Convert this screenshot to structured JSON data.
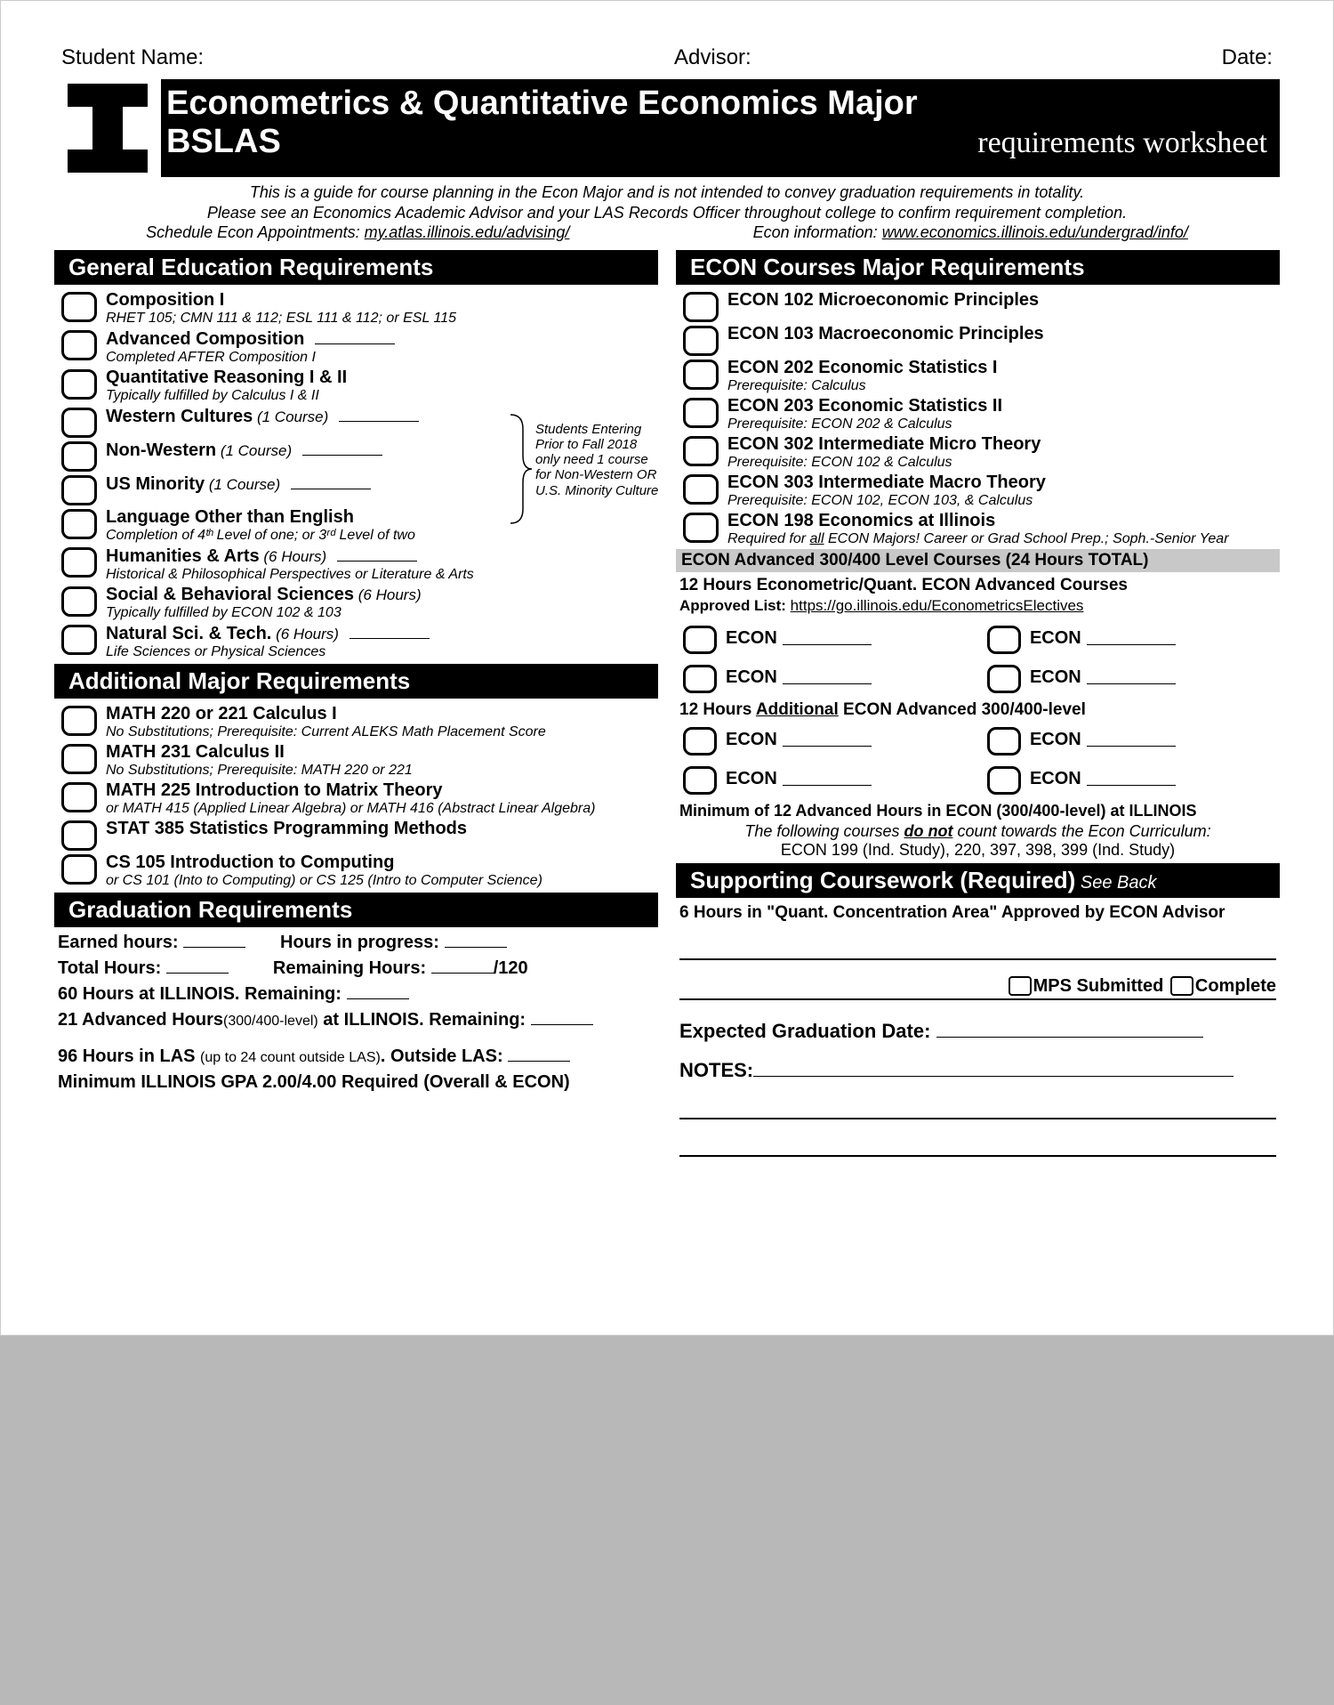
{
  "top": {
    "student": "Student Name:",
    "advisor": "Advisor:",
    "date": "Date:"
  },
  "banner": {
    "title": "Econometrics & Quantitative Economics Major",
    "deg": "BSLAS",
    "tag": "requirements worksheet"
  },
  "intro": {
    "l1": "This is a guide for course planning in the Econ Major and is not intended to convey graduation requirements in totality.",
    "l2": "Please see an Economics Academic Advisor and your LAS Records Officer throughout college to confirm requirement completion.",
    "left": "Schedule Econ Appointments: ",
    "left_link": "my.atlas.illinois.edu/advising/",
    "right": "Econ information: ",
    "right_link": "www.economics.illinois.edu/undergrad/info/"
  },
  "sec": {
    "gened": "General Education Requirements",
    "addl": "Additional Major Requirements",
    "grad": "Graduation Requirements",
    "econ": "ECON Courses Major Requirements",
    "support": "Supporting Coursework (Required)",
    "seeback": " See Back"
  },
  "gened": [
    {
      "t": "Composition I",
      "s": "RHET 105;  CMN 111 & 112;  ESL 111 & 112; or  ESL 115"
    },
    {
      "t": "Advanced Composition",
      "s": "Completed AFTER Composition I",
      "line": true
    },
    {
      "t": "Quantitative Reasoning I & II",
      "s": "Typically fulfilled by Calculus I & II"
    },
    {
      "t": "Western Cultures",
      "tlight": "(1 Course)",
      "line": true
    },
    {
      "t": "Non-Western",
      "tlight": "(1 Course)",
      "line": true
    },
    {
      "t": "US Minority",
      "tlight": "(1 Course)",
      "line": true
    },
    {
      "t": "Language Other than English",
      "s": "Completion of 4ᵗʰ Level of one; or 3ʳᵈ Level of two"
    },
    {
      "t": "Humanities & Arts",
      "tlight": "(6 Hours)",
      "s": "Historical & Philosophical Perspectives or Literature & Arts",
      "line": true
    },
    {
      "t": "Social & Behavioral Sciences",
      "tlight": "(6 Hours)",
      "s": "Typically fulfilled by ECON 102 & 103"
    },
    {
      "t": "Natural Sci. & Tech.",
      "tlight": "(6 Hours)",
      "s": "Life Sciences or Physical Sciences",
      "line": true
    }
  ],
  "bracket_note": "Students Entering Prior to Fall 2018 only need 1 course for Non-Western OR U.S. Minority Culture",
  "addl": [
    {
      "t": "MATH 220 or 221 Calculus I",
      "s": "No Substitutions; Prerequisite: Current ALEKS Math Placement Score"
    },
    {
      "t": "MATH 231 Calculus II",
      "s": "No Substitutions; Prerequisite: MATH 220 or 221"
    },
    {
      "t": "MATH 225 Introduction to Matrix Theory",
      "s": "or MATH 415 (Applied Linear Algebra) or MATH 416 (Abstract Linear Algebra)"
    },
    {
      "t": "STAT 385 Statistics Programming Methods"
    },
    {
      "t": "CS 105 Introduction to Computing",
      "s": "or CS 101 (Into to Computing) or CS 125 (Intro to Computer Science)"
    }
  ],
  "grad": {
    "r1a": "Earned hours:",
    "r1b": "Hours in progress:",
    "r2a": "Total Hours:",
    "r2b": "Remaining Hours:",
    "r2c": "/120",
    "r3": "60 Hours at ILLINOIS. Remaining:",
    "r4a": "21 Advanced Hours",
    "r4b": "(300/400-level)",
    "r4c": " at ILLINOIS. Remaining:",
    "r5a": "96 Hours in LAS",
    "r5b": "(up to 24 count outside LAS)",
    "r5c": ". Outside LAS:",
    "r6": "Minimum ILLINOIS GPA 2.00/4.00 Required (Overall & ECON)"
  },
  "econ": [
    {
      "t": "ECON 102 Microeconomic Principles"
    },
    {
      "t": "ECON 103 Macroeconomic Principles"
    },
    {
      "t": "ECON 202 Economic Statistics I",
      "s": "Prerequisite: Calculus"
    },
    {
      "t": "ECON 203 Economic Statistics II",
      "s": "Prerequisite: ECON 202 & Calculus"
    },
    {
      "t": "ECON 302 Intermediate Micro Theory",
      "s": "Prerequisite: ECON 102 & Calculus"
    },
    {
      "t": "ECON 303 Intermediate Macro Theory",
      "s": "Prerequisite: ECON 102, ECON 103, & Calculus"
    },
    {
      "t": "ECON 198 Economics at Illinois",
      "s": "Required for all ECON Majors! Career or Grad School Prep.; Soph.-Senior Year",
      "underline_all": true
    }
  ],
  "adv": {
    "gray": "ECON Advanced 300/400 Level Courses (24 Hours TOTAL)",
    "h1": "12 Hours Econometric/Quant. ECON Advanced Courses",
    "approved": "Approved List: ",
    "approved_link": "https://go.illinois.edu/EconometricsElectives",
    "h2_a": "12 Hours ",
    "h2_u": "Additional",
    "h2_b": " ECON Advanced 300/400-level",
    "min": "Minimum of 12 Advanced Hours in ECON (300/400-level) at ILLINOIS",
    "donot_a": "The following courses ",
    "donot_u": "do not",
    "donot_b": " count towards the Econ Curriculum:",
    "donot2": "ECON 199 (Ind. Study), 220, 397, 398, 399 (Ind. Study)",
    "econ_lbl": "ECON"
  },
  "support": {
    "conc": "6 Hours in \"Quant. Concentration Area\" Approved by ECON Advisor",
    "mps": "MPS Submitted",
    "complete": "Complete",
    "expected": "Expected Graduation Date:",
    "notes": "NOTES:"
  }
}
